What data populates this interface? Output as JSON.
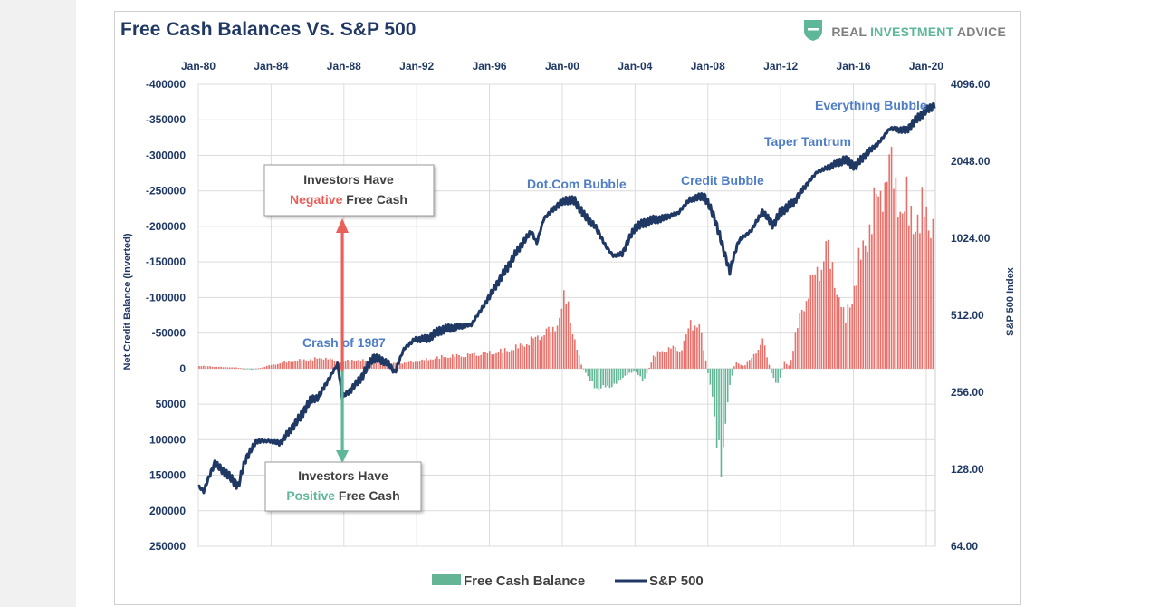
{
  "brand": {
    "part1": "REAL ",
    "part2": "INVESTMENT",
    "part3": " ADVICE",
    "logo_icon": "shield-icon",
    "colors": {
      "gray": "#7f7f7f",
      "green": "#5fb79a"
    }
  },
  "chart_data": {
    "type": "bar",
    "title": "Free Cash Balances Vs. S&P 500",
    "ylabel_left": "Net Credit Balance (Inverted)",
    "ylabel_right": "S&P 500 Index",
    "left_axis": {
      "inverted": true,
      "range": [
        -400000,
        250000
      ],
      "ticks": [
        -400000,
        -350000,
        -300000,
        -250000,
        -200000,
        -150000,
        -100000,
        -50000,
        0,
        50000,
        100000,
        150000,
        200000,
        250000
      ]
    },
    "right_axis": {
      "scale": "log2",
      "range": [
        64,
        4096
      ],
      "ticks": [
        "4096.00",
        "2048.00",
        "1024.00",
        "512.00",
        "256.00",
        "128.00",
        "64.00"
      ]
    },
    "x_axis": {
      "range": [
        1980,
        2020.5
      ],
      "ticks": [
        {
          "year": 1980,
          "label": "Jan-80"
        },
        {
          "year": 1984,
          "label": "Jan-84"
        },
        {
          "year": 1988,
          "label": "Jan-88"
        },
        {
          "year": 1992,
          "label": "Jan-92"
        },
        {
          "year": 1996,
          "label": "Jan-96"
        },
        {
          "year": 2000,
          "label": "Jan-00"
        },
        {
          "year": 2004,
          "label": "Jan-04"
        },
        {
          "year": 2008,
          "label": "Jan-08"
        },
        {
          "year": 2012,
          "label": "Jan-12"
        },
        {
          "year": 2016,
          "label": "Jan-16"
        },
        {
          "year": 2020,
          "label": "Jan-20"
        }
      ]
    },
    "grid": true,
    "legend": {
      "placement": "bottom-center"
    },
    "series": [
      {
        "name": "Free Cash Balance",
        "kind": "bars",
        "negative_color": "#e8706a",
        "positive_color": "#63b596",
        "x": [
          1980.0,
          1981.0,
          1982.0,
          1983.0,
          1984.0,
          1985.0,
          1986.0,
          1987.0,
          1987.8,
          1988.5,
          1989.5,
          1990.5,
          1991.5,
          1992.5,
          1993.5,
          1994.5,
          1995.5,
          1996.5,
          1997.5,
          1998.5,
          1999.0,
          1999.5,
          1999.9,
          2000.2,
          2000.6,
          2001.0,
          2001.5,
          2002.0,
          2002.5,
          2003.0,
          2003.5,
          2004.0,
          2004.5,
          2005.0,
          2005.5,
          2006.0,
          2006.5,
          2007.0,
          2007.5,
          2007.9,
          2008.2,
          2008.5,
          2008.75,
          2009.0,
          2009.25,
          2009.5,
          2010.0,
          2010.5,
          2011.0,
          2011.5,
          2011.8,
          2012.2,
          2012.5,
          2013.0,
          2013.5,
          2014.0,
          2014.5,
          2015.0,
          2015.5,
          2016.0,
          2016.5,
          2017.0,
          2017.5,
          2018.0,
          2018.3,
          2018.7,
          2019.0,
          2019.5,
          2020.0,
          2020.4
        ],
        "values": [
          -5000,
          -3000,
          -2000,
          2000,
          -6000,
          -12000,
          -15000,
          -18000,
          -10000,
          -15000,
          -12000,
          -8000,
          -10000,
          -15000,
          -20000,
          -22000,
          -25000,
          -28000,
          -35000,
          -50000,
          -60000,
          -65000,
          -90000,
          -125000,
          -60000,
          -10000,
          20000,
          35000,
          30000,
          25000,
          10000,
          5000,
          20000,
          -20000,
          -30000,
          -35000,
          -30000,
          -70000,
          -80000,
          -10000,
          40000,
          120000,
          160000,
          90000,
          20000,
          -10000,
          -5000,
          -20000,
          -50000,
          10000,
          30000,
          -10000,
          -5000,
          -80000,
          -130000,
          -160000,
          -200000,
          -150000,
          -80000,
          -130000,
          -200000,
          -250000,
          -300000,
          -330000,
          -320000,
          -250000,
          -280000,
          -240000,
          -270000,
          -230000
        ]
      },
      {
        "name": "S&P 500",
        "kind": "line",
        "color": "#1f3864",
        "x": [
          1980.0,
          1980.3,
          1980.9,
          1981.6,
          1982.2,
          1982.6,
          1983.2,
          1983.9,
          1984.5,
          1985.0,
          1985.6,
          1986.2,
          1986.6,
          1987.2,
          1987.65,
          1987.9,
          1988.4,
          1989.0,
          1989.6,
          1990.4,
          1990.8,
          1991.3,
          1991.9,
          1992.6,
          1993.3,
          1994.1,
          1995.0,
          1995.6,
          1996.2,
          1997.0,
          1997.6,
          1998.3,
          1998.6,
          1999.0,
          1999.6,
          2000.2,
          2000.7,
          2001.2,
          2001.8,
          2002.4,
          2002.8,
          2003.3,
          2004.0,
          2004.8,
          2005.6,
          2006.4,
          2007.0,
          2007.8,
          2008.3,
          2008.9,
          2009.2,
          2009.7,
          2010.4,
          2011.0,
          2011.6,
          2012.0,
          2012.7,
          2013.4,
          2014.0,
          2014.7,
          2015.5,
          2016.1,
          2016.6,
          2017.4,
          2018.0,
          2018.9,
          2019.3,
          2019.9,
          2020.2,
          2020.45
        ],
        "values": [
          110,
          105,
          135,
          122,
          110,
          140,
          165,
          165,
          162,
          180,
          205,
          240,
          245,
          290,
          330,
          245,
          262,
          295,
          350,
          335,
          305,
          378,
          412,
          415,
          448,
          460,
          470,
          545,
          640,
          790,
          930,
          1090,
          980,
          1225,
          1350,
          1450,
          1430,
          1260,
          1140,
          950,
          875,
          890,
          1130,
          1200,
          1230,
          1290,
          1450,
          1500,
          1260,
          900,
          760,
          1000,
          1100,
          1300,
          1150,
          1300,
          1410,
          1650,
          1860,
          1950,
          2080,
          1960,
          2150,
          2420,
          2750,
          2700,
          2900,
          3200,
          3300,
          3400
        ]
      }
    ],
    "annotations": [
      "Crash of 1987",
      "Dot.Com Bubble",
      "Credit Bubble",
      "Taper Tantrum",
      "Everything Bubble"
    ],
    "callouts": {
      "negative": {
        "line1": "Investors Have",
        "highlight": "Negative",
        "rest": " Free Cash",
        "color": "#e8605a"
      },
      "positive": {
        "line1": "Investors Have",
        "highlight": "Positive",
        "rest": " Free Cash",
        "color": "#5fb79a"
      }
    }
  }
}
